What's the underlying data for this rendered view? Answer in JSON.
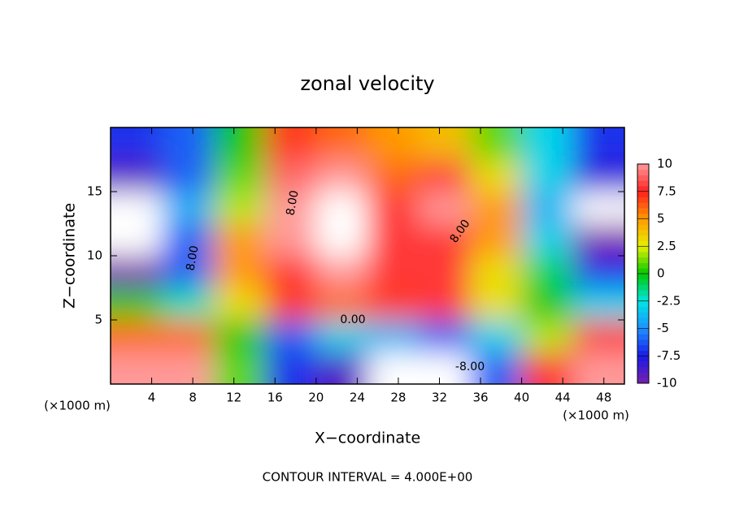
{
  "chart_data": {
    "type": "contour",
    "title": "zonal velocity",
    "x_label": "X−coordinate",
    "y_label": "Z−coordinate",
    "x_unit": "(×1000 m)",
    "note": "CONTOUR INTERVAL = 4.000E+00",
    "xlim": [
      0,
      50
    ],
    "ylim": [
      0,
      20
    ],
    "xticks": [
      4,
      8,
      12,
      16,
      20,
      24,
      28,
      32,
      36,
      40,
      44,
      48
    ],
    "yticks": [
      5,
      10,
      15
    ],
    "x": [
      2.5,
      7.5,
      12.5,
      17.5,
      22.5,
      27.5,
      32.5,
      37.5,
      42.5,
      47.5
    ],
    "y": [
      1.25,
      3.75,
      6.25,
      8.75,
      11.25,
      13.75,
      16.25,
      18.75
    ],
    "z": [
      [
        10,
        10,
        1,
        -7,
        -9,
        -11,
        -11,
        -6,
        8,
        10
      ],
      [
        6,
        6,
        0,
        -6,
        -3,
        -4,
        -6,
        -3,
        2,
        8
      ],
      [
        0,
        -2,
        3,
        7,
        6,
        7,
        8,
        3,
        0,
        -3
      ],
      [
        -10,
        -6,
        5,
        8,
        10,
        8,
        8,
        3,
        -1,
        -7
      ],
      [
        -11,
        -6,
        5,
        10,
        12,
        8,
        8,
        5,
        -3,
        -10
      ],
      [
        -11,
        -4,
        2,
        10,
        12,
        8,
        10,
        5,
        -4,
        -11
      ],
      [
        -9,
        -6,
        1,
        9,
        10,
        6,
        8,
        3,
        -3,
        -8
      ],
      [
        -7,
        -6,
        0,
        7,
        6,
        5,
        4,
        1,
        -3,
        -7
      ]
    ],
    "clim": [
      -10,
      10
    ],
    "cticks": [
      -10,
      -7.5,
      -5,
      -2.5,
      0,
      2.5,
      5,
      7.5,
      10
    ],
    "colormap": [
      "#7a1fb0",
      "#1a1ae6",
      "#1e90ff",
      "#00e5e5",
      "#00c800",
      "#e6f000",
      "#ff9900",
      "#ff2020",
      "#ff9a9a"
    ],
    "contour_labels": [
      "8.00",
      "8.00",
      "8.00",
      "0.00",
      "-8.00"
    ]
  }
}
